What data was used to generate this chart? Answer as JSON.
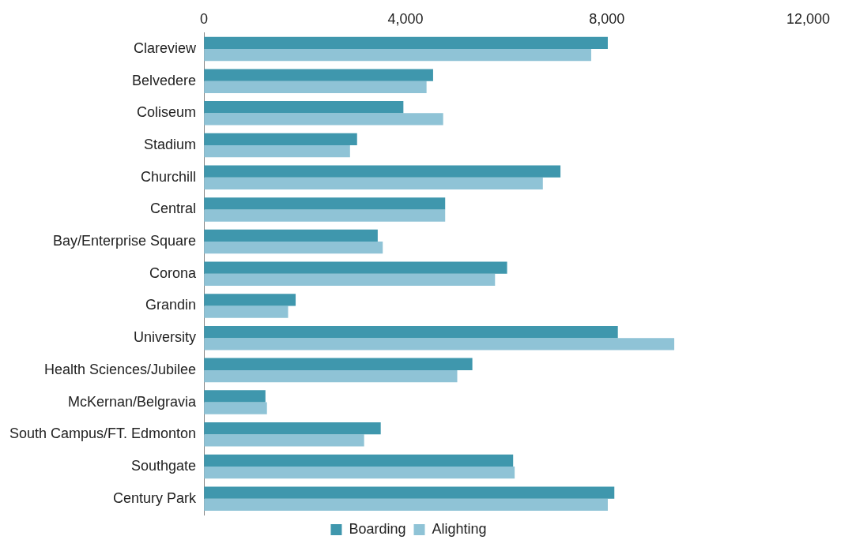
{
  "chart_data": {
    "type": "bar",
    "orientation": "horizontal",
    "categories": [
      "Clareview",
      "Belvedere",
      "Coliseum",
      "Stadium",
      "Churchill",
      "Central",
      "Bay/Enterprise Square",
      "Corona",
      "Grandin",
      "University",
      "Health Sciences/Jubilee",
      "McKernan/Belgravia",
      "South Campus/FT. Edmonton",
      "Southgate",
      "Century Park"
    ],
    "series": [
      {
        "name": "Boarding",
        "color": "#3f97ad",
        "values": [
          8020,
          4550,
          3960,
          3040,
          7080,
          4790,
          3450,
          6020,
          1820,
          8220,
          5330,
          1220,
          3510,
          6140,
          8150
        ]
      },
      {
        "name": "Alighting",
        "color": "#8fc3d6",
        "values": [
          7690,
          4420,
          4750,
          2900,
          6730,
          4790,
          3550,
          5780,
          1670,
          9340,
          5030,
          1250,
          3180,
          6170,
          8020
        ]
      }
    ],
    "xlim": [
      0,
      12000
    ],
    "xticks": [
      {
        "value": 0,
        "label": "0"
      },
      {
        "value": 4000,
        "label": "4,000"
      },
      {
        "value": 8000,
        "label": "8,000"
      },
      {
        "value": 12000,
        "label": "12,000"
      }
    ],
    "grid": false,
    "legend": "bottom"
  }
}
